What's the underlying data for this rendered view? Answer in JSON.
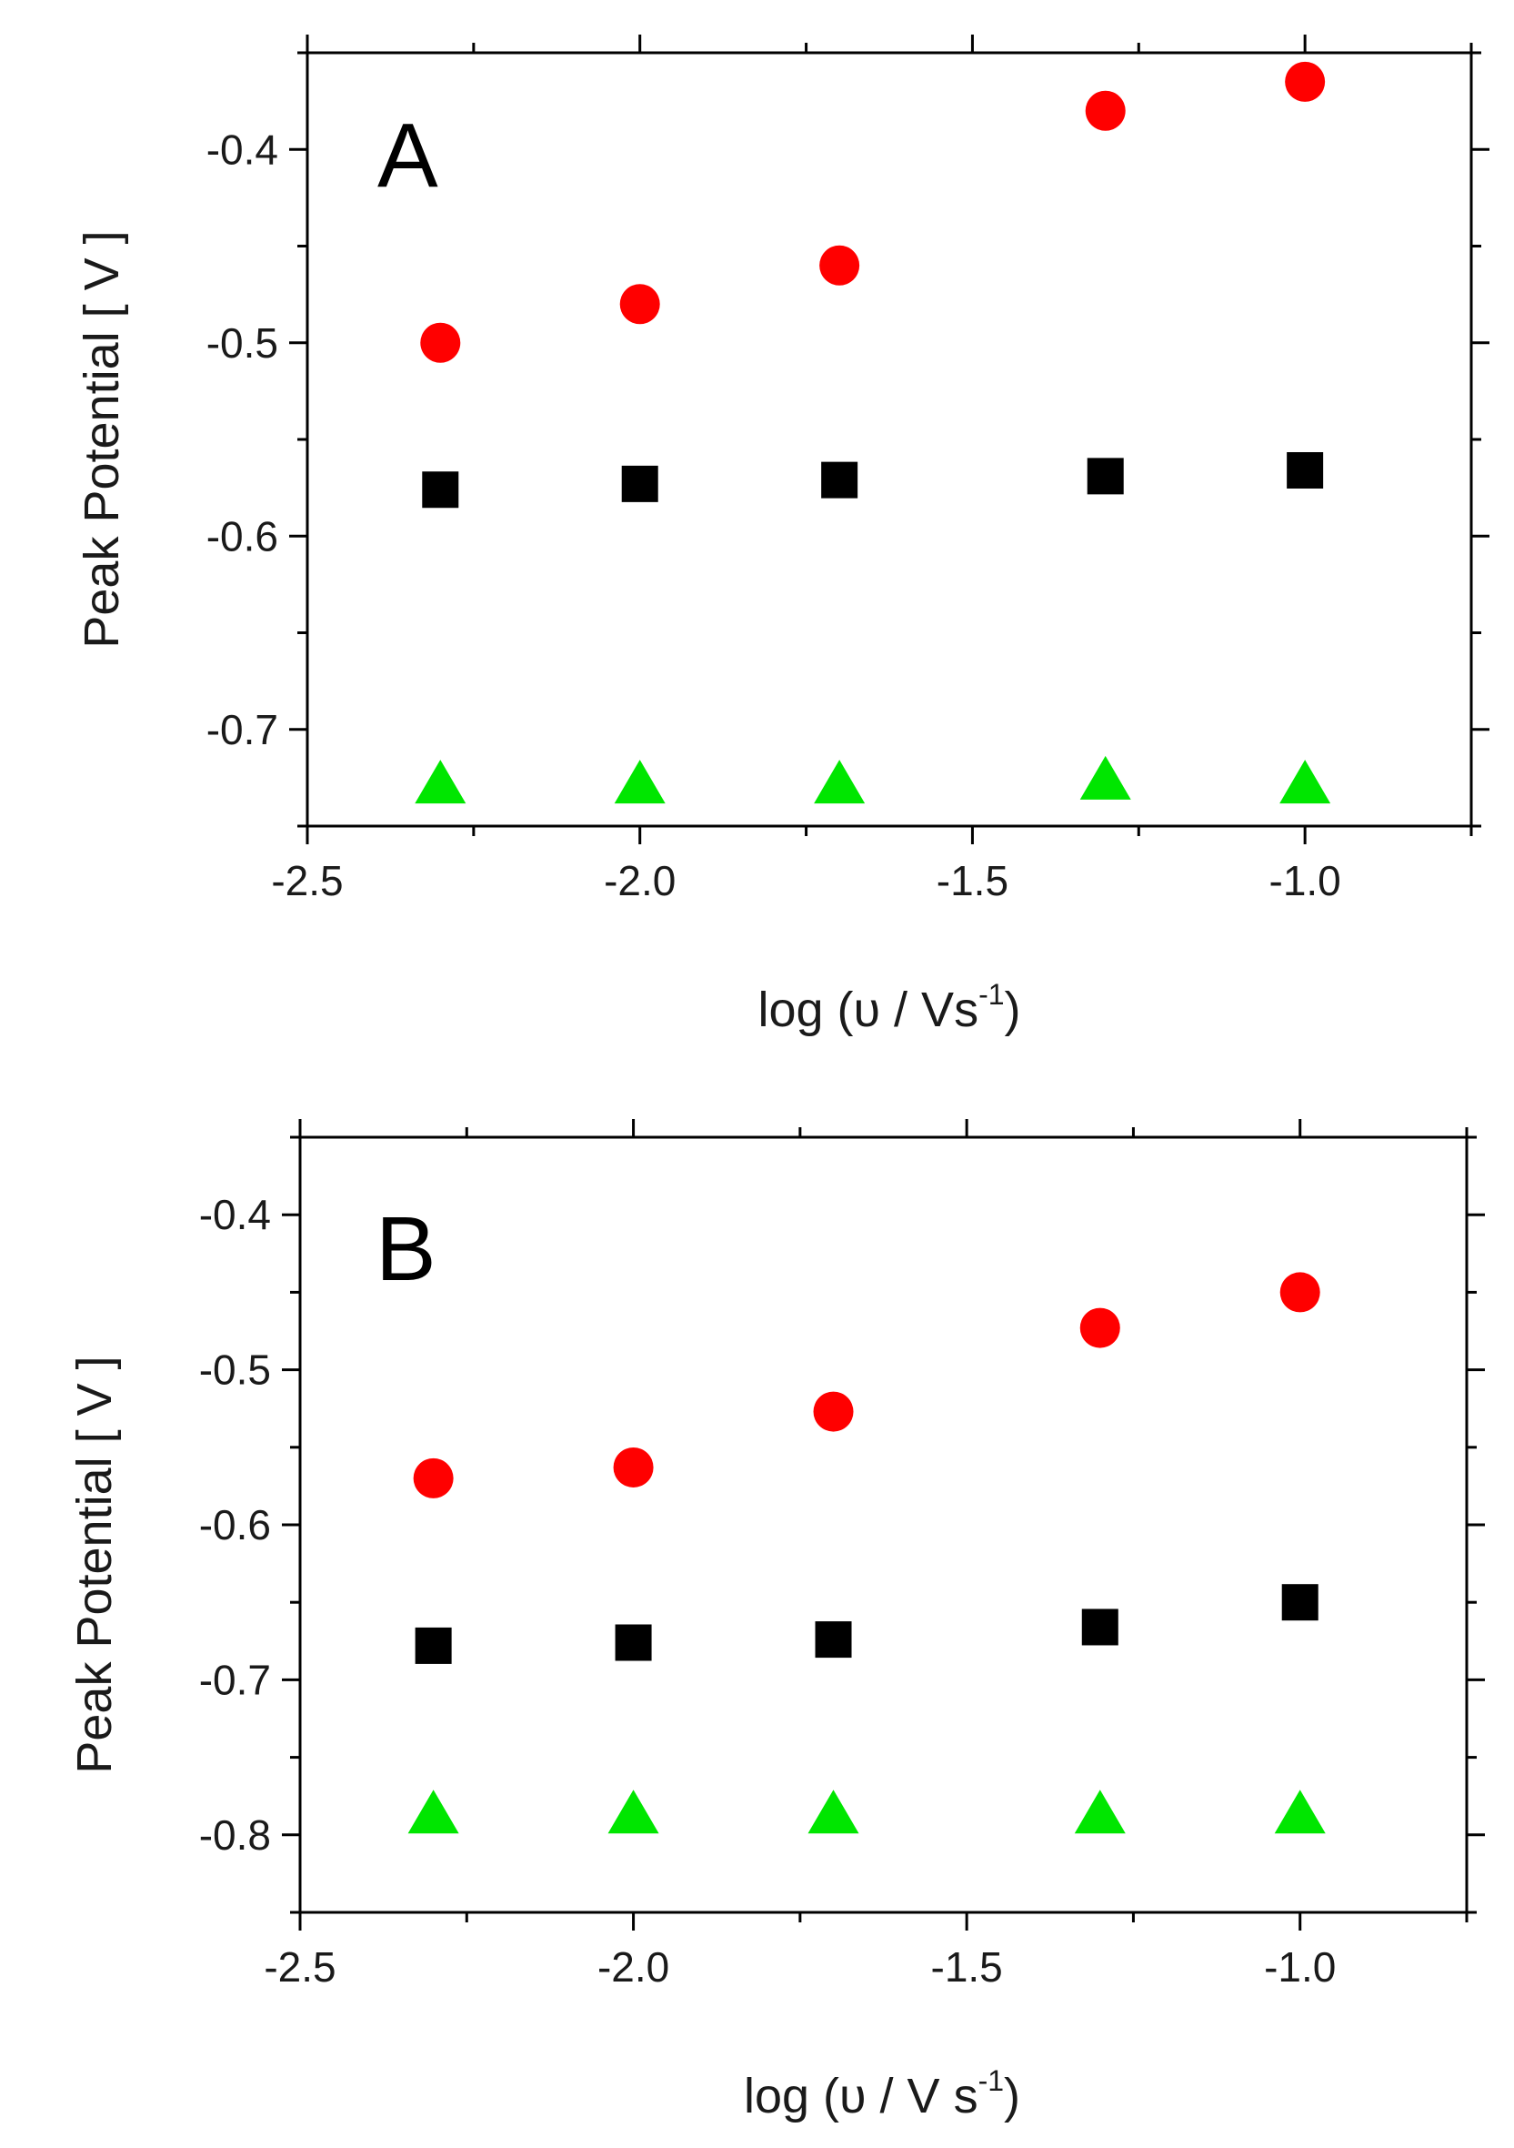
{
  "colors": {
    "circle": "#ff0000",
    "square": "#000000",
    "triangle": "#00e600",
    "axis": "#000000"
  },
  "chart_data": [
    {
      "type": "scatter",
      "panel_label": "A",
      "xlabel": "log (υ / Vs",
      "xlabel_sup": "-1",
      "xlabel_end": ")",
      "ylabel": "Peak Potential  [ V ]",
      "xlim": [
        -2.5,
        -0.75
      ],
      "ylim": [
        -0.75,
        -0.35
      ],
      "xticks": [
        -2.5,
        -2.0,
        -1.5,
        -1.0
      ],
      "xtick_labels": [
        "-2.5",
        "-2.0",
        "-1.5",
        "-1.0"
      ],
      "yticks": [
        -0.7,
        -0.6,
        -0.5,
        -0.4
      ],
      "ytick_labels": [
        "-0.7",
        "-0.6",
        "-0.5",
        "-0.4"
      ],
      "x": [
        -2.3,
        -2.0,
        -1.7,
        -1.3,
        -1.0
      ],
      "series": [
        {
          "name": "circle",
          "marker": "circle",
          "values": [
            -0.5,
            -0.48,
            -0.46,
            -0.38,
            -0.365
          ]
        },
        {
          "name": "square",
          "marker": "square",
          "values": [
            -0.576,
            -0.573,
            -0.571,
            -0.569,
            -0.566
          ]
        },
        {
          "name": "triangle",
          "marker": "triangle",
          "values": [
            -0.727,
            -0.727,
            -0.727,
            -0.725,
            -0.727
          ]
        }
      ]
    },
    {
      "type": "scatter",
      "panel_label": "B",
      "xlabel": "log (υ / V s",
      "xlabel_sup": "-1",
      "xlabel_end": ")",
      "ylabel": "Peak Potential [  V  ]",
      "xlim": [
        -2.5,
        -0.75
      ],
      "ylim": [
        -0.85,
        -0.35
      ],
      "xticks": [
        -2.5,
        -2.0,
        -1.5,
        -1.0
      ],
      "xtick_labels": [
        "-2.5",
        "-2.0",
        "-1.5",
        "-1.0"
      ],
      "yticks": [
        -0.8,
        -0.7,
        -0.6,
        -0.5,
        -0.4
      ],
      "ytick_labels": [
        "-0.8",
        "-0.7",
        "-0.6",
        "-0.5",
        "-0.4"
      ],
      "x": [
        -2.3,
        -2.0,
        -1.7,
        -1.3,
        -1.0
      ],
      "series": [
        {
          "name": "circle",
          "marker": "circle",
          "values": [
            -0.57,
            -0.563,
            -0.527,
            -0.473,
            -0.45
          ]
        },
        {
          "name": "square",
          "marker": "square",
          "values": [
            -0.678,
            -0.676,
            -0.674,
            -0.666,
            -0.65
          ]
        },
        {
          "name": "triangle",
          "marker": "triangle",
          "values": [
            -0.785,
            -0.785,
            -0.785,
            -0.785,
            -0.785
          ]
        }
      ]
    }
  ]
}
